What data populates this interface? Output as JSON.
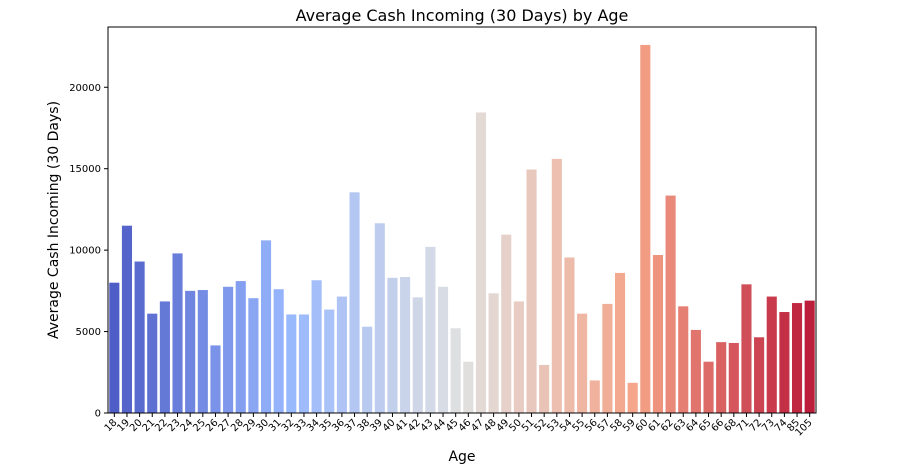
{
  "chart_data": {
    "type": "bar",
    "title": "Average Cash Incoming (30 Days) by Age",
    "xlabel": "Age",
    "ylabel": "Average Cash Incoming (30 Days)",
    "ylim": [
      0,
      23700
    ],
    "yticks": [
      0,
      5000,
      10000,
      15000,
      20000
    ],
    "grid": false,
    "legend": "none",
    "colormap": "coolwarm",
    "categories": [
      "18",
      "19",
      "20",
      "21",
      "22",
      "23",
      "24",
      "25",
      "26",
      "27",
      "28",
      "29",
      "30",
      "31",
      "32",
      "33",
      "34",
      "35",
      "36",
      "37",
      "38",
      "39",
      "40",
      "41",
      "42",
      "43",
      "44",
      "45",
      "46",
      "47",
      "48",
      "49",
      "50",
      "51",
      "52",
      "53",
      "54",
      "55",
      "56",
      "57",
      "58",
      "59",
      "60",
      "61",
      "62",
      "63",
      "64",
      "65",
      "66",
      "68",
      "71",
      "72",
      "73",
      "74",
      "85",
      "105"
    ],
    "values": [
      8000,
      11500,
      9300,
      6100,
      6850,
      9800,
      7500,
      7550,
      4150,
      7750,
      8100,
      7050,
      10600,
      7600,
      6050,
      6050,
      8150,
      6350,
      7150,
      13550,
      5300,
      11650,
      8300,
      8350,
      7100,
      10200,
      7750,
      5200,
      3150,
      18450,
      7350,
      10950,
      6850,
      14950,
      2950,
      15600,
      9550,
      6100,
      2000,
      6700,
      8600,
      1850,
      22600,
      9700,
      13350,
      6550,
      5100,
      3150,
      4350,
      4300,
      7900,
      4650,
      7150,
      6200,
      6750,
      6900
    ]
  }
}
